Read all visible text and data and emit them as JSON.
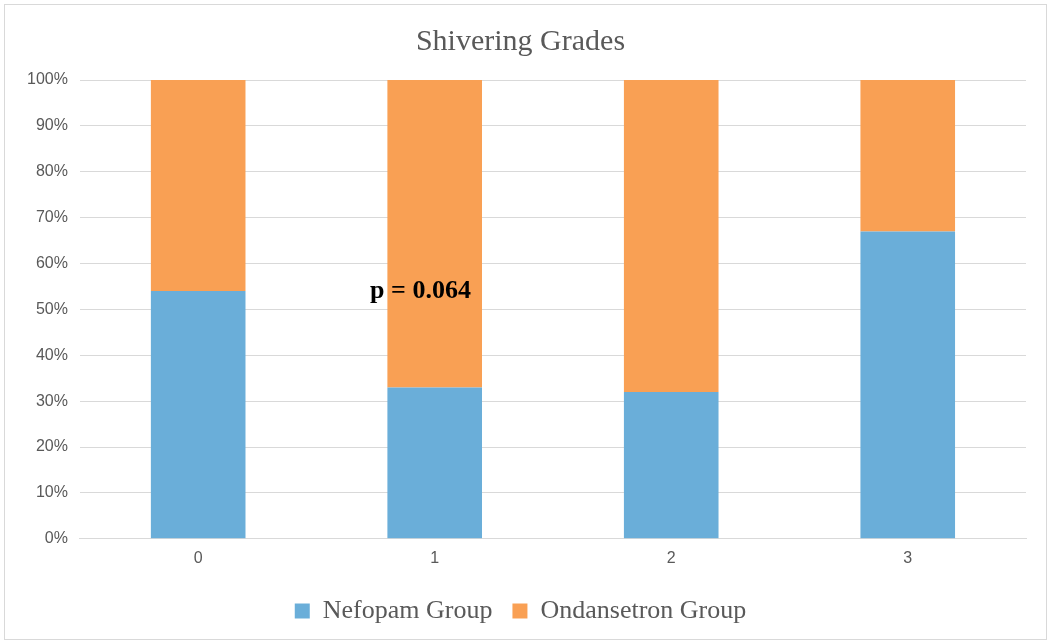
{
  "chart_data": {
    "type": "bar",
    "title": "Shivering Grades",
    "categories": [
      "0",
      "1",
      "2",
      "3"
    ],
    "stacked": true,
    "series": [
      {
        "name": "Nefopam Group",
        "color": "#6aaed9",
        "values": [
          54,
          33,
          32,
          67
        ]
      },
      {
        "name": "Ondansetron Group",
        "color": "#f9a054",
        "values": [
          46,
          67,
          68,
          33
        ]
      }
    ],
    "ylim": [
      0,
      100
    ],
    "yticks": [
      {
        "value": 0,
        "label": "0%"
      },
      {
        "value": 10,
        "label": "10%"
      },
      {
        "value": 20,
        "label": "20%"
      },
      {
        "value": 30,
        "label": "30%"
      },
      {
        "value": 40,
        "label": "40%"
      },
      {
        "value": 50,
        "label": "50%"
      },
      {
        "value": 60,
        "label": "60%"
      },
      {
        "value": 70,
        "label": "70%"
      },
      {
        "value": 80,
        "label": "80%"
      },
      {
        "value": 90,
        "label": "90%"
      },
      {
        "value": 100,
        "label": "100%"
      }
    ],
    "grid": "y",
    "legend": "bottom",
    "annotations": [
      "p = 0.064"
    ]
  }
}
